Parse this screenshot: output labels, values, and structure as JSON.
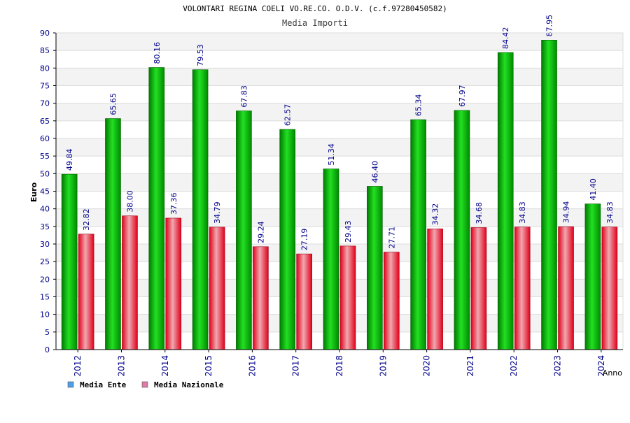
{
  "chart_data": {
    "type": "bar",
    "title": "VOLONTARI REGINA COELI VO.RE.CO. O.D.V. (c.f.97280450582)",
    "subtitle": "Media Importi",
    "xlabel": "Anno",
    "ylabel": "Euro",
    "ylim": [
      0,
      90
    ],
    "ytick_step": 5,
    "grid": true,
    "legend_position": "bottom-left",
    "categories": [
      "2012",
      "2013",
      "2014",
      "2015",
      "2016",
      "2017",
      "2018",
      "2019",
      "2020",
      "2021",
      "2022",
      "2023",
      "2024"
    ],
    "series": [
      {
        "name": "Media Ente",
        "color": "#00c000",
        "legend_color": "#4f9fe8",
        "values": [
          49.84,
          65.65,
          80.16,
          79.53,
          67.83,
          62.57,
          51.34,
          46.4,
          65.34,
          67.97,
          84.42,
          87.95,
          41.4
        ],
        "labels": [
          "49.84",
          "65.65",
          "80.16",
          "79.53",
          "67.83",
          "62.57",
          "51.34",
          "46.40",
          "65.34",
          "67.97",
          "84.42",
          "87.95",
          "41.40"
        ]
      },
      {
        "name": "Media Nazionale",
        "color": "#e8203a",
        "legend_color": "#e07aa8",
        "values": [
          32.82,
          38.0,
          37.36,
          34.79,
          29.24,
          27.19,
          29.43,
          27.71,
          34.32,
          34.68,
          34.83,
          34.94,
          34.83
        ],
        "labels": [
          "32.82",
          "38.00",
          "37.36",
          "34.79",
          "29.24",
          "27.19",
          "29.43",
          "27.71",
          "34.32",
          "34.68",
          "34.83",
          "34.94",
          "34.83"
        ]
      }
    ]
  }
}
